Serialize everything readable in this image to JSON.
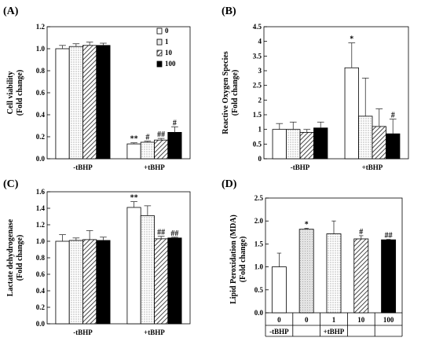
{
  "chart_data": [
    {
      "panel_label": "(A)",
      "type": "bar",
      "ylabel_line1": "Cell viability",
      "ylabel_line2": "(Fold change)",
      "ylim": [
        0,
        1.2
      ],
      "yticks": [
        "0.0",
        "0.2",
        "0.4",
        "0.6",
        "0.8",
        "1.0",
        "1.2"
      ],
      "categories": [
        "-tBHP",
        "+tBHP"
      ],
      "legend_position": "top-right",
      "series": [
        {
          "name": "0",
          "pattern": "white",
          "values": [
            1.0,
            0.135
          ],
          "errors": [
            0.03,
            0.01
          ],
          "annotations": [
            "",
            "**"
          ]
        },
        {
          "name": "1",
          "pattern": "dots",
          "values": [
            1.02,
            0.15
          ],
          "errors": [
            0.025,
            0.01
          ],
          "annotations": [
            "",
            "#"
          ]
        },
        {
          "name": "10",
          "pattern": "hatch",
          "values": [
            1.03,
            0.17
          ],
          "errors": [
            0.03,
            0.015
          ],
          "annotations": [
            "",
            "##"
          ]
        },
        {
          "name": "100",
          "pattern": "black",
          "values": [
            1.03,
            0.24
          ],
          "errors": [
            0.02,
            0.05
          ],
          "annotations": [
            "",
            "#"
          ]
        }
      ]
    },
    {
      "panel_label": "(B)",
      "type": "bar",
      "ylabel_line1": "Reactive Oxygen Species",
      "ylabel_line2": "(Fold change)",
      "ylim": [
        0,
        4.5
      ],
      "yticks": [
        "0",
        "0.5",
        "1",
        "1.5",
        "2",
        "2.5",
        "3",
        "3.5",
        "4",
        "4.5"
      ],
      "categories": [
        "-tBHP",
        "+tBHP"
      ],
      "series": [
        {
          "name": "0",
          "pattern": "white",
          "values": [
            1.0,
            3.1
          ],
          "errors": [
            0.2,
            0.85
          ],
          "annotations": [
            "",
            "*"
          ]
        },
        {
          "name": "1",
          "pattern": "dots",
          "values": [
            1.0,
            1.45
          ],
          "errors": [
            0.25,
            1.3
          ],
          "annotations": [
            "",
            ""
          ]
        },
        {
          "name": "10",
          "pattern": "hatch",
          "values": [
            0.9,
            1.1
          ],
          "errors": [
            0.1,
            0.6
          ],
          "annotations": [
            "",
            ""
          ]
        },
        {
          "name": "100",
          "pattern": "black",
          "values": [
            1.05,
            0.85
          ],
          "errors": [
            0.2,
            0.5
          ],
          "annotations": [
            "",
            "#"
          ]
        }
      ]
    },
    {
      "panel_label": "(C)",
      "type": "bar",
      "ylabel_line1": "Lactate dehydrogenase",
      "ylabel_line2": "(Fold change)",
      "ylim": [
        0,
        1.6
      ],
      "yticks": [
        "0.0",
        "0.2",
        "0.4",
        "0.6",
        "0.8",
        "1.0",
        "1.2",
        "1.4",
        "1.6"
      ],
      "categories": [
        "-tBHP",
        "+tBHP"
      ],
      "series": [
        {
          "name": "0",
          "pattern": "white",
          "values": [
            1.0,
            1.41
          ],
          "errors": [
            0.08,
            0.07
          ],
          "annotations": [
            "",
            "**"
          ]
        },
        {
          "name": "1",
          "pattern": "dots",
          "values": [
            1.01,
            1.31
          ],
          "errors": [
            0.03,
            0.12
          ],
          "annotations": [
            "",
            ""
          ]
        },
        {
          "name": "10",
          "pattern": "hatch",
          "values": [
            1.02,
            1.03
          ],
          "errors": [
            0.11,
            0.03
          ],
          "annotations": [
            "",
            "##"
          ]
        },
        {
          "name": "100",
          "pattern": "black",
          "values": [
            1.01,
            1.04
          ],
          "errors": [
            0.04,
            0.01
          ],
          "annotations": [
            "",
            "##"
          ]
        }
      ]
    },
    {
      "panel_label": "(D)",
      "type": "bar",
      "ylabel_line1": "Lipid Peroxidation (MDA)",
      "ylabel_line2": "(Fold change)",
      "ylim": [
        0,
        2.5
      ],
      "yticks": [
        "0.0",
        "0.5",
        "1.0",
        "1.5",
        "2.0",
        "2.5"
      ],
      "categories": [
        "0",
        "0",
        "1",
        "10",
        "100"
      ],
      "group_labels": [
        "-tBHP",
        "+tBHP"
      ],
      "values": [
        1.0,
        1.82,
        1.72,
        1.61,
        1.59
      ],
      "errors": [
        0.3,
        0.02,
        0.28,
        0.07,
        0.01
      ],
      "patterns": [
        "white",
        "lightdots",
        "dots",
        "hatch",
        "black"
      ],
      "annotations": [
        "",
        "*",
        "",
        "#",
        "##"
      ]
    }
  ]
}
